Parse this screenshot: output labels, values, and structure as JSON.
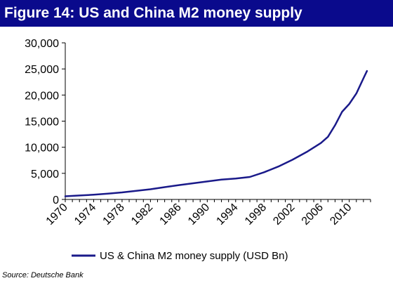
{
  "title": "Figure 14: US and China M2 money supply",
  "source": "Source: Deutsche Bank",
  "colors": {
    "title_bg": "#0a0a8c",
    "series": "#1a1a8a"
  },
  "chart_data": {
    "type": "line",
    "xlim": [
      1970,
      2013
    ],
    "ylim": [
      0,
      30000
    ],
    "y_ticks": [
      "0",
      "5,000",
      "10,000",
      "15,000",
      "20,000",
      "25,000",
      "30,000"
    ],
    "x_ticks": [
      "1970",
      "1974",
      "1978",
      "1982",
      "1986",
      "1990",
      "1994",
      "1998",
      "2002",
      "2006",
      "2010"
    ],
    "grid": false,
    "legend_position": "bottom",
    "series": [
      {
        "name": "US & China M2 money supply (USD Bn)",
        "x": [
          1970,
          1972,
          1974,
          1976,
          1978,
          1980,
          1982,
          1984,
          1986,
          1988,
          1990,
          1992,
          1994,
          1996,
          1998,
          2000,
          2002,
          2004,
          2006,
          2007,
          2008,
          2009,
          2010,
          2011,
          2012,
          2012.5
        ],
        "y": [
          600,
          750,
          900,
          1100,
          1350,
          1650,
          1950,
          2350,
          2750,
          3100,
          3450,
          3800,
          4000,
          4300,
          5200,
          6300,
          7600,
          9100,
          10800,
          12000,
          14200,
          16800,
          18300,
          20300,
          23200,
          24600
        ]
      }
    ]
  }
}
